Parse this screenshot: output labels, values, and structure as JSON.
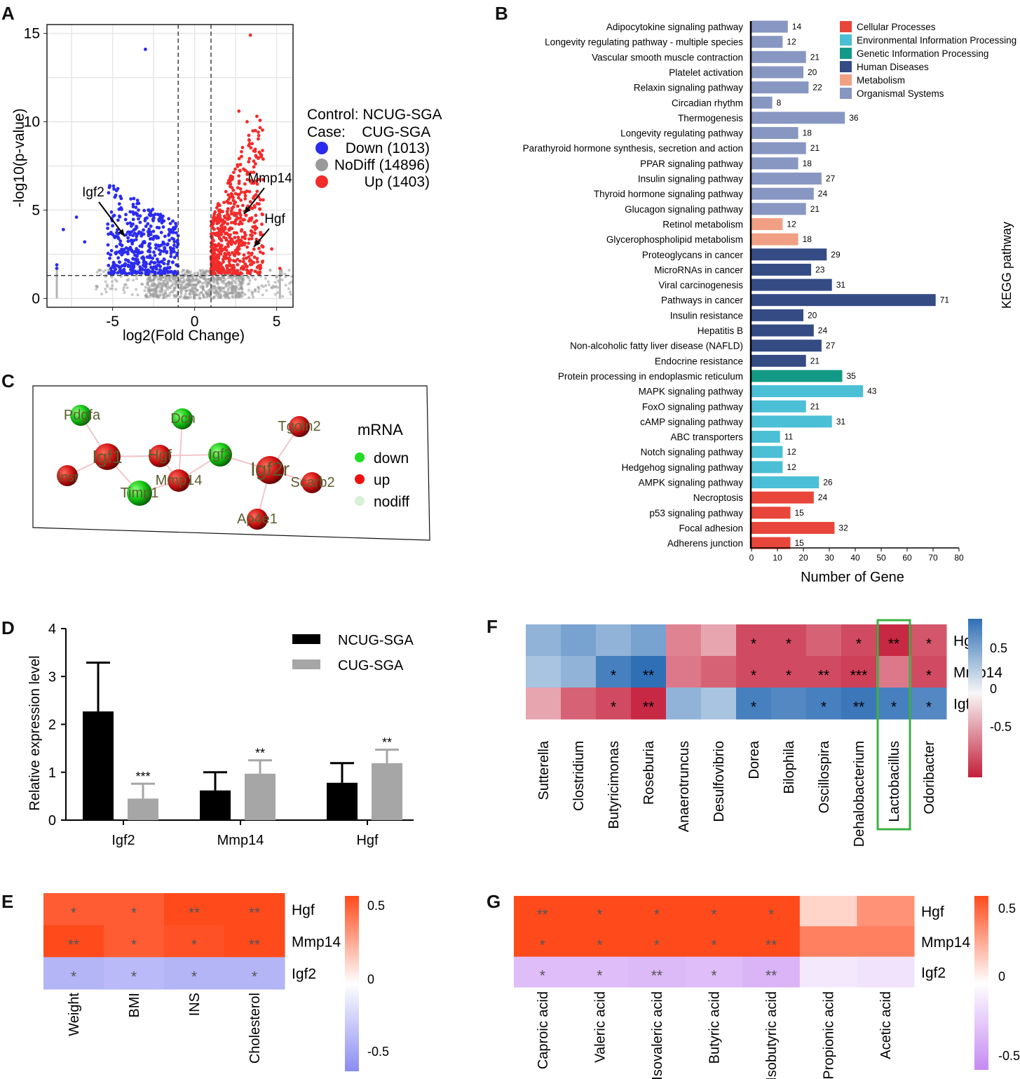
{
  "panels": {
    "A": "A",
    "B": "B",
    "C": "C",
    "D": "D",
    "E": "E",
    "F": "F",
    "G": "G"
  },
  "colors": {
    "down": "#2b2bf0",
    "up": "#f22b2b",
    "nodiff": "#b4b4b4",
    "neg_red": "#c41e3a",
    "pos_blue": "#2f6fb5",
    "hot": "#ff4a1c",
    "cool_blue": "#8a8cf2",
    "cool_purple": "#c58af2"
  },
  "chart_data": [
    {
      "id": "A",
      "type": "scatter",
      "title": "",
      "xlabel": "log2(Fold Change)",
      "ylabel": "-log10(p-value)",
      "xlim": [
        -9,
        6
      ],
      "ylim": [
        -0.5,
        15.5
      ],
      "xticks": [
        -5,
        0,
        5
      ],
      "yticks": [
        0,
        5,
        10,
        15
      ],
      "thresholds": {
        "logfc": [
          -1,
          1
        ],
        "p": 1.3
      },
      "legend": {
        "control": "Control: NCUG-SGA",
        "case": "Case:    CUG-SGA",
        "entries": [
          {
            "name": "Down (1013)",
            "color": "#2b2bf0"
          },
          {
            "name": "NoDiff (14896)",
            "color": "#9a9a9a"
          },
          {
            "name": "Up (1403)",
            "color": "#f22b2b"
          }
        ]
      },
      "annotations": [
        {
          "label": "Igf2",
          "x": -4.2,
          "y": 3.5
        },
        {
          "label": "Mmp14",
          "x": 2.6,
          "y": 4.6
        },
        {
          "label": "Hgf",
          "x": 3.2,
          "y": 2.7
        }
      ]
    },
    {
      "id": "B",
      "type": "bar",
      "orientation": "horizontal",
      "xlabel": "Number of Gene",
      "ylabel": "KEGG pathway",
      "xlim": [
        0,
        80
      ],
      "xticks": [
        0,
        10,
        20,
        30,
        40,
        50,
        60,
        70,
        80
      ],
      "categories": [
        "Adipocytokine signaling pathway",
        "Longevity regulating pathway - multiple species",
        "Vascular smooth muscle contraction",
        "Platelet activation",
        "Relaxin signaling pathway",
        "Circadian rhythm",
        "Thermogenesis",
        "Longevity regulating pathway",
        "Parathyroid hormone synthesis, secretion and action",
        "PPAR signaling pathway",
        "Insulin signaling pathway",
        "Thyroid hormone signaling pathway",
        "Glucagon signaling pathway",
        "Retinol metabolism",
        "Glycerophospholipid metabolism",
        "Proteoglycans in cancer",
        "MicroRNAs in cancer",
        "Viral carcinogenesis",
        "Pathways in cancer",
        "Insulin resistance",
        "Hepatitis B",
        "Non-alcoholic fatty liver disease (NAFLD)",
        "Endocrine resistance",
        "Protein processing in endoplasmic reticulum",
        "MAPK signaling pathway",
        "FoxO signaling pathway",
        "cAMP signaling pathway",
        "ABC transporters",
        "Notch signaling pathway",
        "Hedgehog signaling pathway",
        "AMPK signaling pathway",
        "Necroptosis",
        "p53 signaling pathway",
        "Focal adhesion",
        "Adherens junction"
      ],
      "values": [
        14,
        12,
        21,
        20,
        22,
        8,
        36,
        18,
        21,
        18,
        27,
        24,
        21,
        12,
        18,
        29,
        23,
        31,
        71,
        20,
        24,
        27,
        21,
        35,
        43,
        21,
        31,
        11,
        12,
        12,
        26,
        24,
        15,
        32,
        15
      ],
      "groups": [
        5,
        5,
        5,
        5,
        5,
        5,
        5,
        5,
        5,
        5,
        5,
        5,
        5,
        4,
        4,
        3,
        3,
        3,
        3,
        3,
        3,
        3,
        3,
        2,
        1,
        1,
        1,
        1,
        1,
        1,
        1,
        0,
        0,
        0,
        0
      ],
      "legend": [
        {
          "name": "Cellular Processes",
          "color": "#e8463a"
        },
        {
          "name": "Environmental Information Processing",
          "color": "#4bbfd6"
        },
        {
          "name": "Genetic Information Processing",
          "color": "#139a86"
        },
        {
          "name": "Human Diseases",
          "color": "#344b84"
        },
        {
          "name": "Metabolism",
          "color": "#f1a084"
        },
        {
          "name": "Organismal Systems",
          "color": "#8896c2"
        }
      ]
    },
    {
      "id": "C",
      "type": "network",
      "legend_title": "mRNA",
      "legend": [
        {
          "name": "down",
          "color": "#22dd22"
        },
        {
          "name": "up",
          "color": "#ee1111"
        },
        {
          "name": "nodiff",
          "color": "#d9efd6"
        }
      ],
      "nodes": [
        {
          "id": "Pdgfa",
          "state": "down"
        },
        {
          "id": "Igf1",
          "state": "up"
        },
        {
          "id": "Insr",
          "state": "up"
        },
        {
          "id": "Hgf",
          "state": "up"
        },
        {
          "id": "Dcn",
          "state": "down"
        },
        {
          "id": "Igf2",
          "state": "down"
        },
        {
          "id": "Mmp14",
          "state": "up"
        },
        {
          "id": "Timp1",
          "state": "down"
        },
        {
          "id": "Igf2r",
          "state": "up"
        },
        {
          "id": "Tgoln2",
          "state": "up"
        },
        {
          "id": "Scarb2",
          "state": "up"
        },
        {
          "id": "Ap4e1",
          "state": "up"
        }
      ],
      "edges": [
        [
          "Pdgfa",
          "Igf1"
        ],
        [
          "Insr",
          "Igf1"
        ],
        [
          "Igf1",
          "Hgf"
        ],
        [
          "Igf1",
          "Timp1"
        ],
        [
          "Igf1",
          "Igf2"
        ],
        [
          "Hgf",
          "Mmp14"
        ],
        [
          "Dcn",
          "Mmp14"
        ],
        [
          "Mmp14",
          "Timp1"
        ],
        [
          "Mmp14",
          "Igf2"
        ],
        [
          "Igf2",
          "Igf2r"
        ],
        [
          "Igf2r",
          "Tgoln2"
        ],
        [
          "Igf2r",
          "Scarb2"
        ],
        [
          "Igf2r",
          "Ap4e1"
        ]
      ]
    },
    {
      "id": "D",
      "type": "bar",
      "ylabel": "Relative expression level",
      "ylim": [
        0,
        4
      ],
      "yticks": [
        0,
        1,
        2,
        3,
        4
      ],
      "categories": [
        "Igf2",
        "Mmp14",
        "Hgf"
      ],
      "series": [
        {
          "name": "NCUG-SGA",
          "color": "#000000",
          "values": [
            2.27,
            0.62,
            0.78
          ],
          "errors": [
            1.02,
            0.38,
            0.41
          ],
          "sig": [
            "",
            "",
            ""
          ]
        },
        {
          "name": "CUG-SGA",
          "color": "#a6a6a6",
          "values": [
            0.45,
            0.97,
            1.19
          ],
          "errors": [
            0.31,
            0.28,
            0.28
          ],
          "sig": [
            "***",
            "**",
            "**"
          ]
        }
      ]
    },
    {
      "id": "E",
      "type": "heatmap",
      "rows": [
        "Hgf",
        "Mmp14",
        "Igf2"
      ],
      "cols": [
        "Weight",
        "BMI",
        "INS",
        "Cholesterol"
      ],
      "values": [
        [
          0.45,
          0.45,
          0.52,
          0.5
        ],
        [
          0.55,
          0.45,
          0.48,
          0.58
        ],
        [
          -0.32,
          -0.3,
          -0.32,
          -0.32
        ]
      ],
      "stars": [
        [
          "*",
          "*",
          "**",
          "**"
        ],
        [
          "**",
          "*",
          "*",
          "**"
        ],
        [
          "*",
          "*",
          "*",
          "*"
        ]
      ],
      "colorbar": {
        "min": -0.5,
        "max": 0.5,
        "ticks": [
          "0.5",
          "0",
          "-0.5"
        ]
      }
    },
    {
      "id": "F",
      "type": "heatmap",
      "rows": [
        "Hgf",
        "Mmp14",
        "Igf2"
      ],
      "cols": [
        "Sutterella",
        "Clostridium",
        "Butyricimonas",
        "Roseburia",
        "Anaerotruncus",
        "Desulfovibrio",
        "Dorea",
        "Bilophila",
        "Oscillospira",
        "Dehalobacterium",
        "Lactobacillus",
        "Odoribacter"
      ],
      "values": [
        [
          0.45,
          0.55,
          0.45,
          0.55,
          -0.55,
          -0.4,
          -0.8,
          -0.8,
          -0.7,
          -0.8,
          -0.95,
          -0.75
        ],
        [
          0.35,
          0.45,
          0.75,
          0.85,
          -0.6,
          -0.7,
          -0.8,
          -0.8,
          -0.8,
          -0.85,
          -0.6,
          -0.8
        ],
        [
          -0.4,
          -0.7,
          -0.8,
          -0.95,
          0.45,
          0.35,
          0.75,
          0.7,
          0.75,
          0.8,
          0.75,
          0.7
        ]
      ],
      "stars": [
        [
          "",
          "",
          "",
          "",
          "",
          "",
          "*",
          "*",
          "",
          "*",
          "**",
          "*"
        ],
        [
          "",
          "",
          "*",
          "**",
          "",
          "",
          "*",
          "*",
          "**",
          "***",
          "",
          "*"
        ],
        [
          "",
          "",
          "*",
          "**",
          "",
          "",
          "*",
          "",
          "*",
          "**",
          "*",
          "*"
        ]
      ],
      "highlight": "Lactobacillus",
      "colorbar": {
        "min": -1,
        "max": 0.85,
        "ticks": [
          "0.5",
          "0",
          "-0.5"
        ]
      }
    },
    {
      "id": "G",
      "type": "heatmap",
      "rows": [
        "Hgf",
        "Mmp14",
        "Igf2"
      ],
      "cols": [
        "Caproic acid",
        "Valeric acid",
        "Isovaleric acid",
        "Butyric acid",
        "Isobutyric acid",
        "Propionic acid",
        "Acetic acid"
      ],
      "values": [
        [
          0.55,
          0.52,
          0.53,
          0.52,
          0.53,
          0.12,
          0.3
        ],
        [
          0.52,
          0.52,
          0.52,
          0.52,
          0.55,
          0.35,
          0.35
        ],
        [
          -0.28,
          -0.28,
          -0.3,
          -0.28,
          -0.32,
          -0.1,
          -0.12
        ]
      ],
      "stars": [
        [
          "**",
          "*",
          "*",
          "*",
          "*",
          "",
          ""
        ],
        [
          "*",
          "*",
          "*",
          "*",
          "**",
          "",
          ""
        ],
        [
          "*",
          "*",
          "**",
          "*",
          "**",
          "",
          ""
        ]
      ],
      "colorbar": {
        "min": -0.5,
        "max": 0.5,
        "ticks": [
          "0.5",
          "0",
          "-0.5"
        ]
      }
    }
  ]
}
